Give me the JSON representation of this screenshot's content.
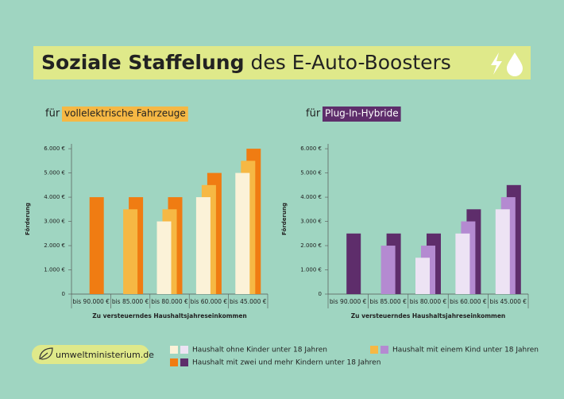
{
  "header": {
    "title_bold": "Soziale Staffelung",
    "title_rest": "des E-Auto-Boosters"
  },
  "footer": {
    "url": "umweltministerium.de"
  },
  "chart_data": [
    {
      "type": "bar",
      "title_prefix": "für",
      "title": "vollelektrische Fahrzeuge",
      "title_color": "#f6b844",
      "y_label": "Förderung",
      "x_label": "Zu versteuerndes Haushaltsjahreseinkommen",
      "categories": [
        "bis 90.000 €",
        "bis 85.000 €",
        "bis 80.000 €",
        "bis 60.000 €",
        "bis 45.000 €"
      ],
      "series": [
        {
          "name": "Haushalt ohne Kinder unter 18 Jahren",
          "color": "#fbf2d8",
          "values": [
            null,
            null,
            3000,
            4000,
            5000
          ]
        },
        {
          "name": "Haushalt mit einem Kind unter 18 Jahren",
          "color": "#f6b844",
          "values": [
            null,
            3500,
            3500,
            4500,
            5500
          ]
        },
        {
          "name": "Haushalt mit zwei und mehr Kindern unter 18 Jahren",
          "color": "#f07c12",
          "values": [
            4000,
            4000,
            4000,
            5000,
            6000
          ]
        }
      ],
      "ylim": [
        0,
        6200
      ],
      "yticks": [
        {
          "value": 0,
          "label": "0"
        },
        {
          "value": 1000,
          "label": "1.000 €"
        },
        {
          "value": 2000,
          "label": "2.000 €"
        },
        {
          "value": 3000,
          "label": "3.000 €"
        },
        {
          "value": 4000,
          "label": "4.000 €"
        },
        {
          "value": 5000,
          "label": "5.000 €"
        },
        {
          "value": 6000,
          "label": "6.000 €"
        }
      ]
    },
    {
      "type": "bar",
      "title_prefix": "für",
      "title": "Plug-In-Hybride",
      "title_color": "#5e2d6b",
      "y_label": "Förderung",
      "x_label": "Zu versteuerndes Haushaltsjahreseinkommen",
      "categories": [
        "bis 90.000 €",
        "bis 85.000 €",
        "bis 80.000 €",
        "bis 60.000 €",
        "bis 45.000 €"
      ],
      "series": [
        {
          "name": "Haushalt ohne Kinder unter 18 Jahren",
          "color": "#ede3f4",
          "values": [
            null,
            null,
            1500,
            2500,
            3500
          ]
        },
        {
          "name": "Haushalt mit einem Kind unter 18 Jahren",
          "color": "#b48ad1",
          "values": [
            null,
            2000,
            2000,
            3000,
            4000
          ]
        },
        {
          "name": "Haushalt mit zwei und mehr Kindern unter 18 Jahren",
          "color": "#5e2d6b",
          "values": [
            2500,
            2500,
            2500,
            3500,
            4500
          ]
        }
      ],
      "ylim": [
        0,
        6200
      ],
      "yticks": [
        {
          "value": 0,
          "label": "0"
        },
        {
          "value": 1000,
          "label": "1.000 €"
        },
        {
          "value": 2000,
          "label": "2.000 €"
        },
        {
          "value": 3000,
          "label": "3.000 €"
        },
        {
          "value": 4000,
          "label": "4.000 €"
        },
        {
          "value": 5000,
          "label": "5.000 €"
        },
        {
          "value": 6000,
          "label": "6.000 €"
        }
      ]
    }
  ]
}
